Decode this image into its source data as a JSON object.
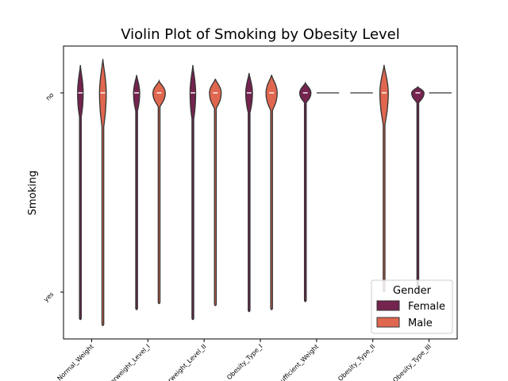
{
  "chart_data": {
    "type": "violin",
    "title": "Violin Plot of Smoking by Obesity Level",
    "xlabel": "",
    "ylabel": "Smoking",
    "categories": [
      "Normal_Weight",
      "Overweight_Level_I",
      "Overweight_Level_II",
      "Obesity_Type_I",
      "Insufficient_Weight",
      "Obesity_Type_II",
      "Obesity_Type_III"
    ],
    "y_categories": [
      "no",
      "yes"
    ],
    "series": [
      {
        "name": "Female",
        "color": "#75234f"
      },
      {
        "name": "Male",
        "color": "#e0674f"
      }
    ],
    "violins": [
      {
        "category": "Normal_Weight",
        "gender": "Female",
        "top": -0.14,
        "bottom": 1.14,
        "body_bottom": 0.12,
        "width": 0.2,
        "peak": 0.0,
        "flat": false
      },
      {
        "category": "Normal_Weight",
        "gender": "Male",
        "top": -0.17,
        "bottom": 1.17,
        "body_bottom": 0.17,
        "width": 0.24,
        "peak": 0.0,
        "flat": false
      },
      {
        "category": "Overweight_Level_I",
        "gender": "Female",
        "top": -0.09,
        "bottom": 1.09,
        "body_bottom": 0.09,
        "width": 0.22,
        "peak": 0.0,
        "flat": false
      },
      {
        "category": "Overweight_Level_I",
        "gender": "Male",
        "top": -0.06,
        "bottom": 1.06,
        "body_bottom": 0.07,
        "width": 0.44,
        "peak": 0.0,
        "flat": false
      },
      {
        "category": "Overweight_Level_II",
        "gender": "Female",
        "top": -0.14,
        "bottom": 1.14,
        "body_bottom": 0.13,
        "width": 0.2,
        "peak": 0.0,
        "flat": false
      },
      {
        "category": "Overweight_Level_II",
        "gender": "Male",
        "top": -0.07,
        "bottom": 1.07,
        "body_bottom": 0.08,
        "width": 0.42,
        "peak": 0.0,
        "flat": false
      },
      {
        "category": "Obesity_Type_I",
        "gender": "Female",
        "top": -0.1,
        "bottom": 1.1,
        "body_bottom": 0.1,
        "width": 0.24,
        "peak": 0.0,
        "flat": false
      },
      {
        "category": "Obesity_Type_I",
        "gender": "Male",
        "top": -0.09,
        "bottom": 1.09,
        "body_bottom": 0.09,
        "width": 0.4,
        "peak": 0.0,
        "flat": false
      },
      {
        "category": "Insufficient_Weight",
        "gender": "Female",
        "top": -0.05,
        "bottom": 1.05,
        "body_bottom": 0.05,
        "width": 0.4,
        "peak": 0.0,
        "flat": false
      },
      {
        "category": "Insufficient_Weight",
        "gender": "Male",
        "top": 0.0,
        "bottom": 0.0,
        "body_bottom": 0.0,
        "width": 0.0,
        "peak": 0.0,
        "flat": true
      },
      {
        "category": "Obesity_Type_II",
        "gender": "Female",
        "top": 0.0,
        "bottom": 0.0,
        "body_bottom": 0.0,
        "width": 0.0,
        "peak": 0.0,
        "flat": true
      },
      {
        "category": "Obesity_Type_II",
        "gender": "Male",
        "top": -0.14,
        "bottom": 1.0,
        "body_bottom": 0.16,
        "width": 0.3,
        "peak": 0.0,
        "flat": false
      },
      {
        "category": "Obesity_Type_III",
        "gender": "Female",
        "top": -0.03,
        "bottom": 1.0,
        "body_bottom": 0.05,
        "width": 0.44,
        "peak": 0.0,
        "flat": false
      },
      {
        "category": "Obesity_Type_III",
        "gender": "Male",
        "top": 0.0,
        "bottom": 0.0,
        "body_bottom": 0.0,
        "width": 0.0,
        "peak": 0.0,
        "flat": true
      }
    ],
    "legend": {
      "title": "Gender",
      "placement": "lower-right",
      "entries": [
        "Female",
        "Male"
      ]
    },
    "grid": false
  }
}
